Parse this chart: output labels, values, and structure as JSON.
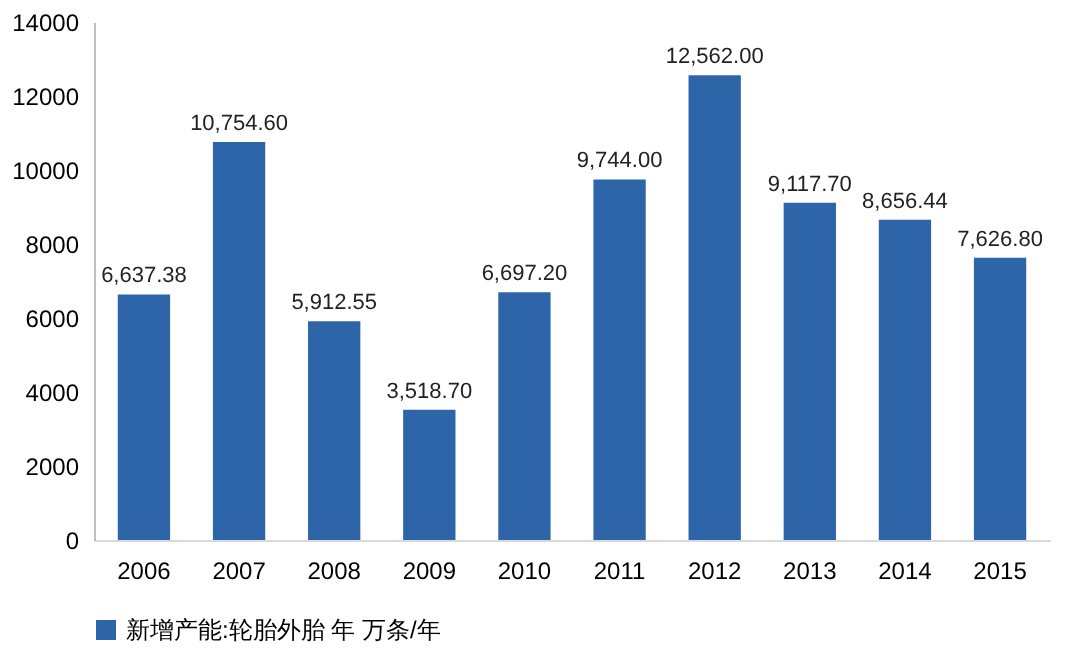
{
  "chart_data": {
    "type": "bar",
    "categories": [
      "2006",
      "2007",
      "2008",
      "2009",
      "2010",
      "2011",
      "2012",
      "2013",
      "2014",
      "2015"
    ],
    "series": [
      {
        "name": "新增产能:轮胎外胎 年 万条/年",
        "color": "#2e64a8",
        "values": [
          6637.38,
          10754.6,
          5912.55,
          3518.7,
          6697.2,
          9744.0,
          12562.0,
          9117.7,
          8656.44,
          7626.8
        ],
        "value_labels": [
          "6,637.38",
          "10,754.60",
          "5,912.55",
          "3,518.70",
          "6,697.20",
          "9,744.00",
          "12,562.00",
          "9,117.70",
          "8,656.44",
          "7,626.80"
        ]
      }
    ],
    "ylim": [
      0,
      14000
    ],
    "yticks": [
      0,
      2000,
      4000,
      6000,
      8000,
      10000,
      12000,
      14000
    ],
    "grid": false,
    "legend": "bottom"
  }
}
